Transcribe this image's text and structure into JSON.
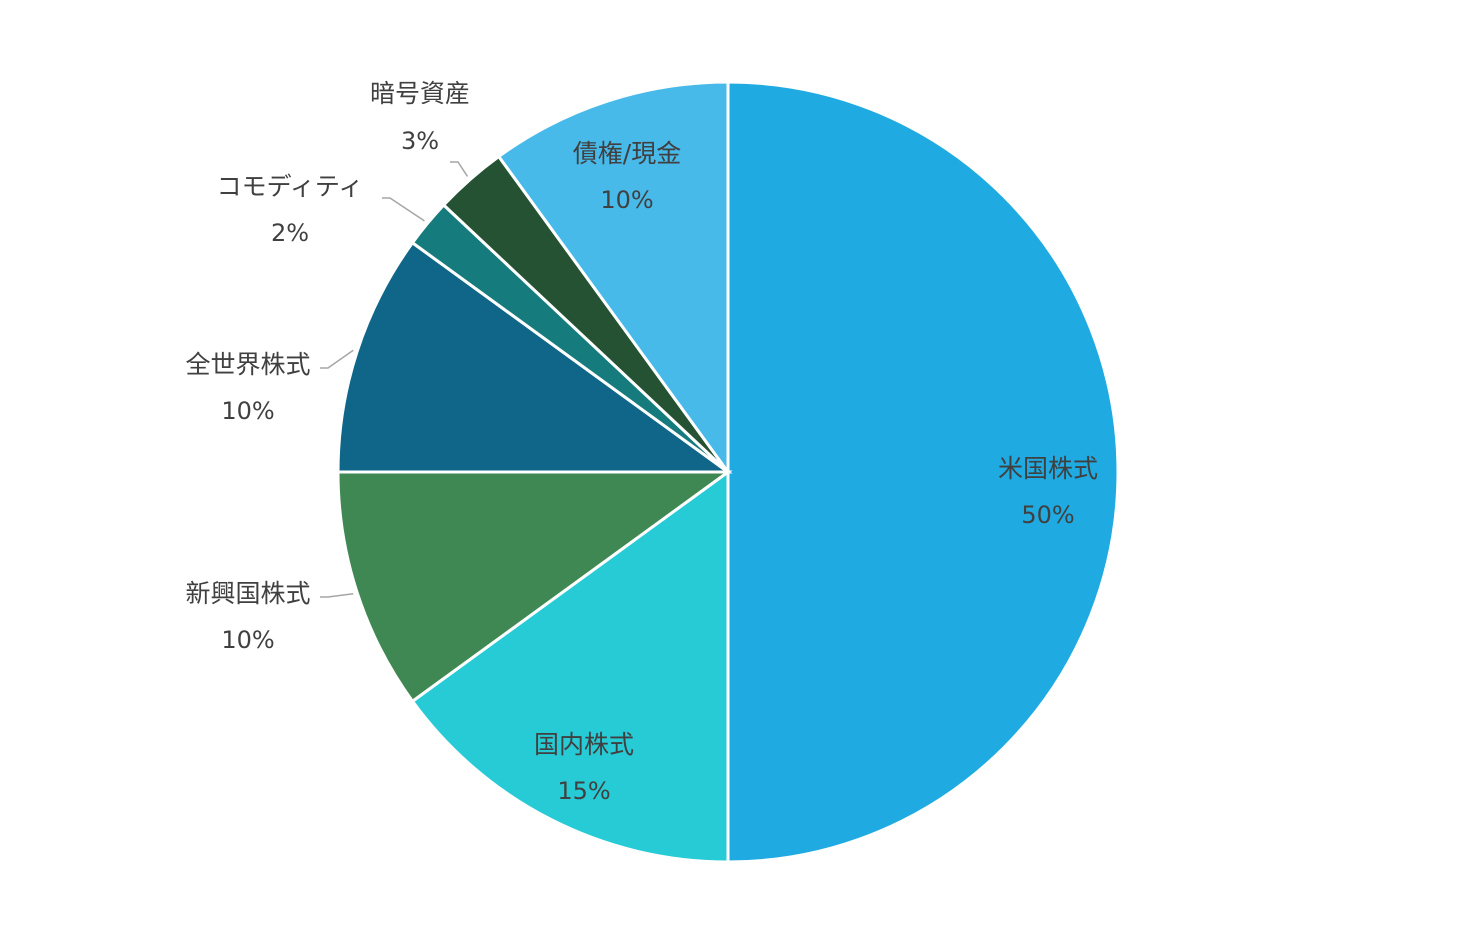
{
  "chart_data": {
    "type": "pie",
    "title": "",
    "start": "top",
    "direction": "clockwise",
    "slices": [
      {
        "name": "米国株式",
        "value": 50,
        "label": "50%",
        "color": "#1FABE2",
        "label_placement": "inside"
      },
      {
        "name": "国内株式",
        "value": 15,
        "label": "15%",
        "color": "#27CBD6",
        "label_placement": "inside"
      },
      {
        "name": "新興国株式",
        "value": 10,
        "label": "10%",
        "color": "#3F8854",
        "label_placement": "outside"
      },
      {
        "name": "全世界株式",
        "value": 10,
        "label": "10%",
        "color": "#0F6688",
        "label_placement": "outside"
      },
      {
        "name": "コモディティ",
        "value": 2,
        "label": "2%",
        "color": "#167B7D",
        "label_placement": "outside"
      },
      {
        "name": "暗号資産",
        "value": 3,
        "label": "3%",
        "color": "#245232",
        "label_placement": "outside"
      },
      {
        "name": "債権/現金",
        "value": 10,
        "label": "10%",
        "color": "#48BAEA",
        "label_placement": "inside"
      }
    ],
    "legend": "none"
  }
}
